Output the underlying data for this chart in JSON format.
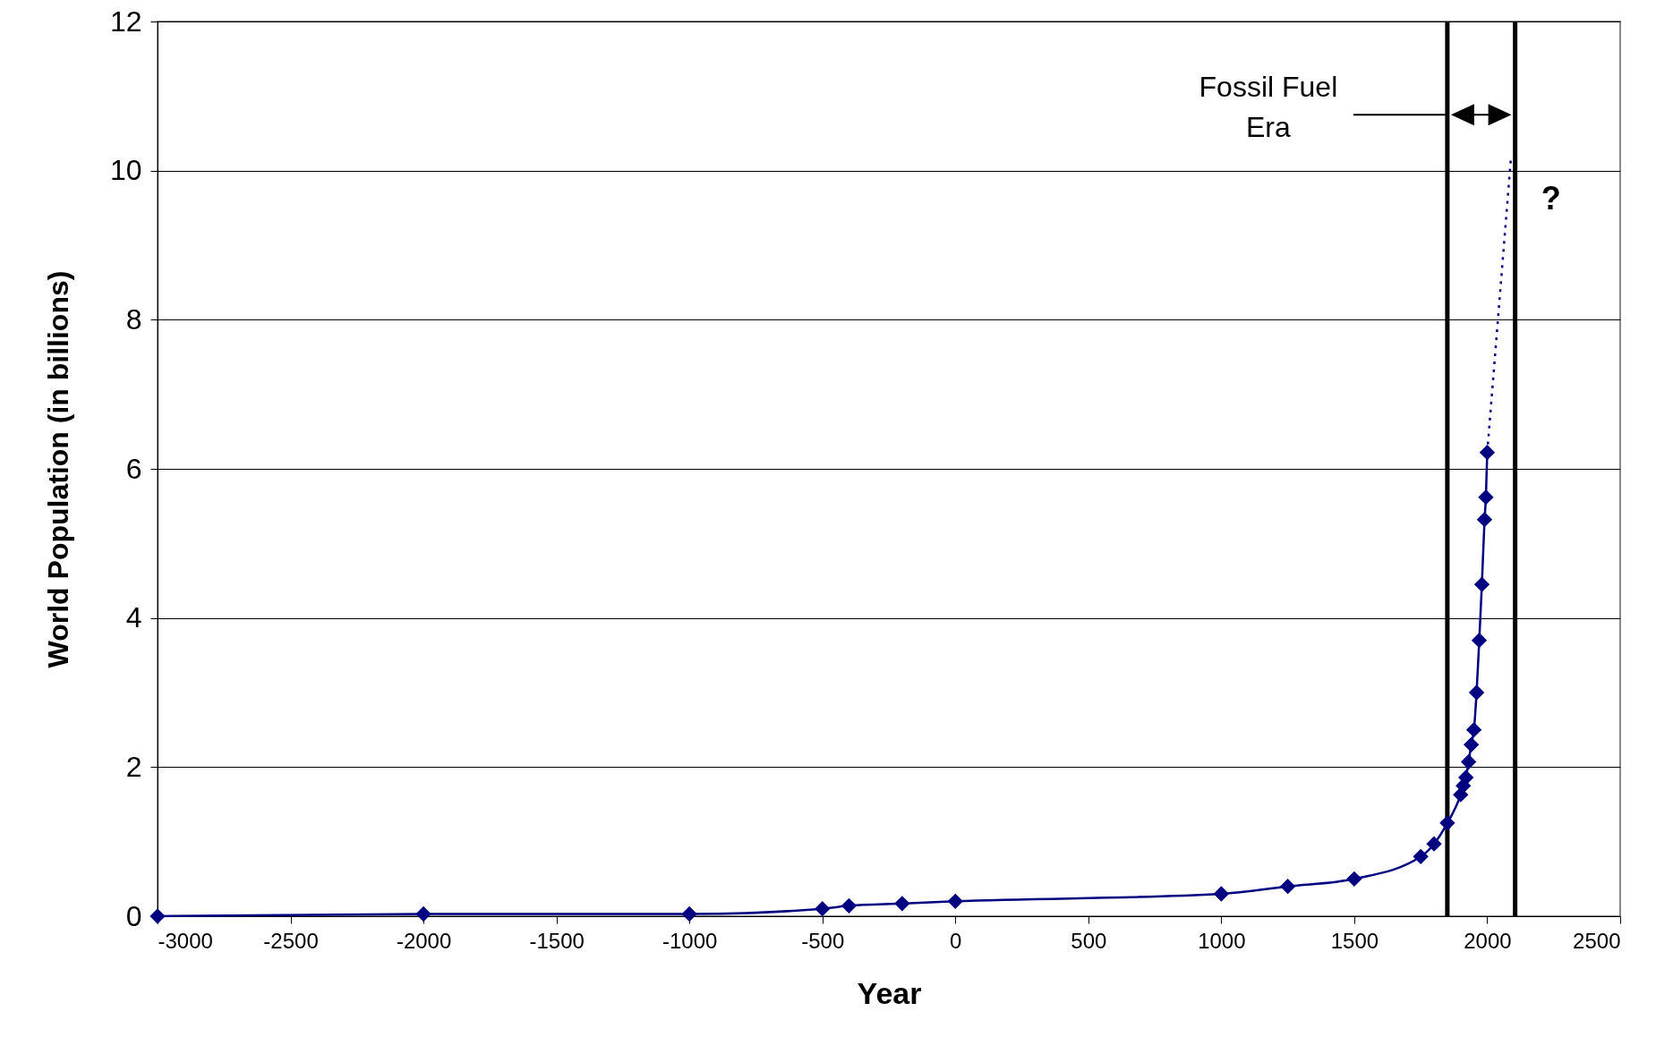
{
  "chart_data": {
    "type": "line",
    "xlabel": "Year",
    "ylabel": "World Population (in billions)",
    "xlim": [
      -3000,
      2500
    ],
    "xticks": [
      -3000,
      -2500,
      -2000,
      -1500,
      -1000,
      -500,
      0,
      500,
      1000,
      1500,
      2000,
      2500
    ],
    "ylim": [
      0,
      12
    ],
    "yticks": [
      0,
      2,
      4,
      6,
      8,
      10,
      12
    ],
    "grid": "y",
    "marker": "diamond",
    "line_style": "solid",
    "series": [
      {
        "color": "#000080",
        "x": [
          -3000,
          -2000,
          -1000,
          -500,
          -400,
          -200,
          0,
          1000,
          1250,
          1500,
          1750,
          1800,
          1850,
          1900,
          1910,
          1920,
          1930,
          1940,
          1950,
          1960,
          1970,
          1980,
          1990,
          1995,
          2000
        ],
        "values": [
          0,
          0.03,
          0.03,
          0.1,
          0.14,
          0.17,
          0.2,
          0.3,
          0.4,
          0.5,
          0.8,
          0.97,
          1.25,
          1.63,
          1.75,
          1.86,
          2.07,
          2.3,
          2.5,
          3.0,
          3.7,
          4.45,
          5.32,
          5.62,
          6.22
        ]
      },
      {
        "color": "#000080",
        "x": [
          2000,
          2090
        ],
        "values": [
          6.22,
          10.2
        ],
        "marker": "none",
        "line_style": "dotted"
      }
    ],
    "ref_lines": [
      {
        "axis": "x",
        "value": 1850,
        "color": "#000000"
      },
      {
        "axis": "x",
        "value": 2105,
        "color": "#000000"
      }
    ],
    "annotations": [
      {
        "text": "Fossil Fuel Era",
        "x": 1850,
        "y": 10.75
      },
      "?"
    ]
  }
}
